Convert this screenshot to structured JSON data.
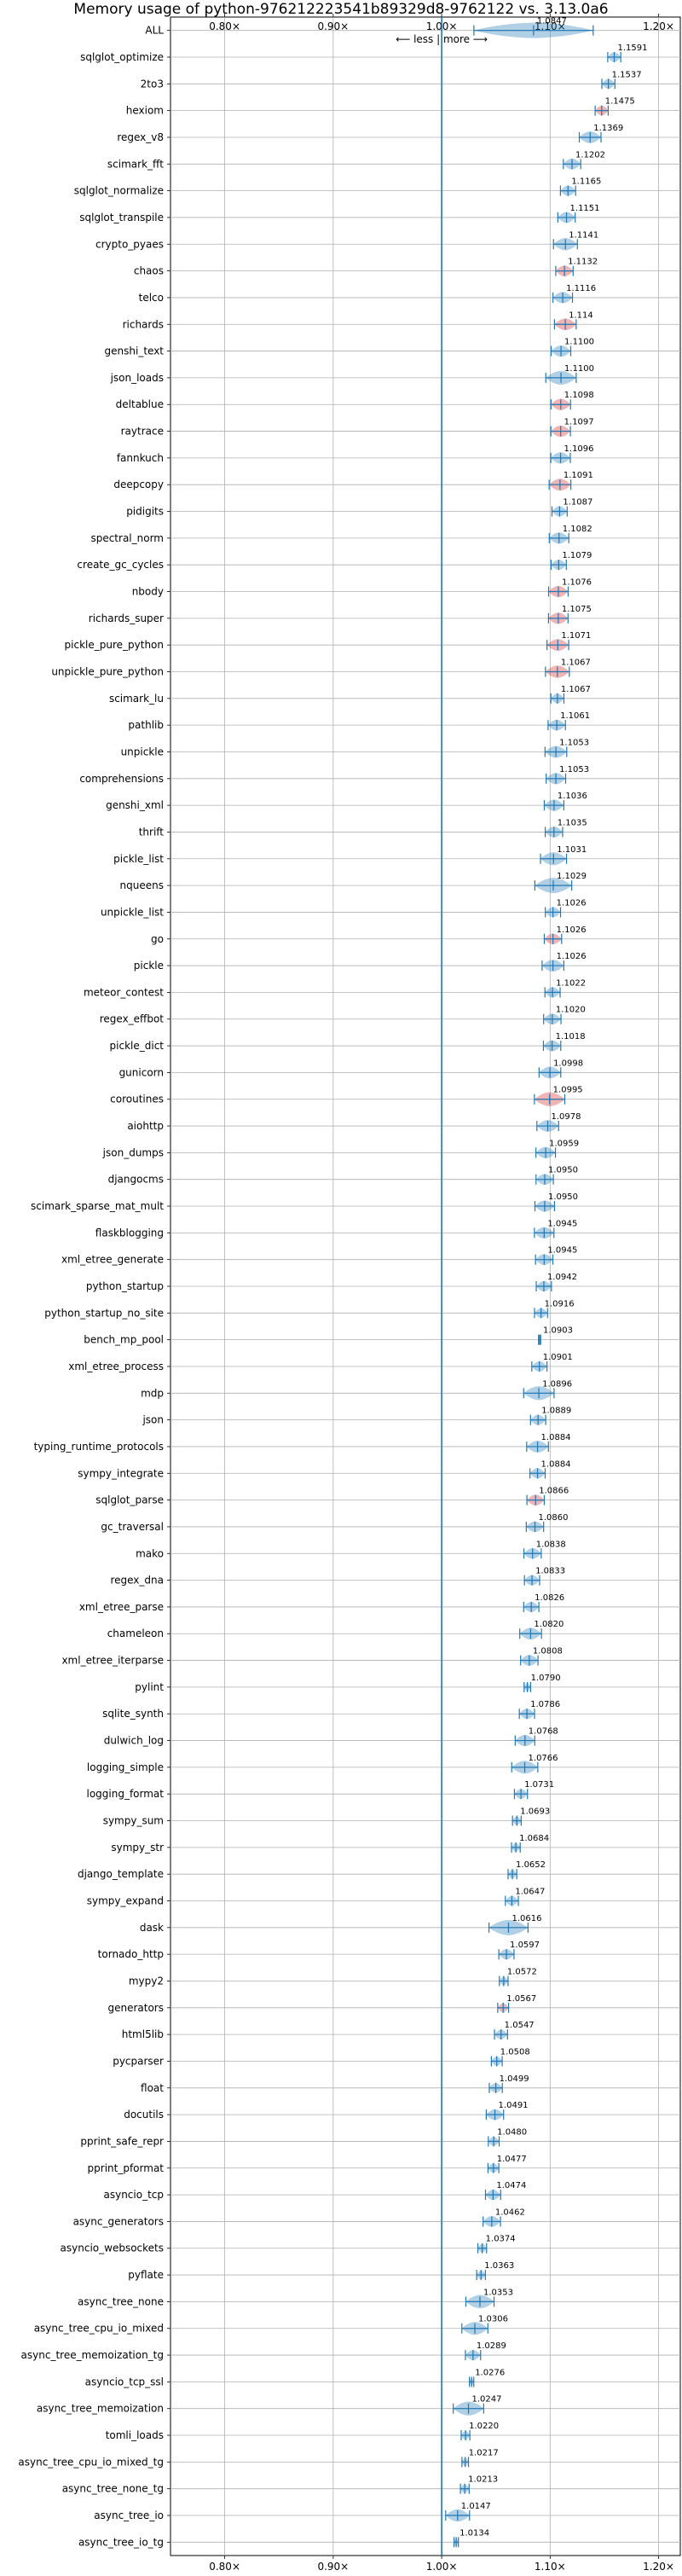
{
  "chart_data": {
    "type": "violin",
    "title": "Memory usage of python-976212223541b89329d8-9762122 vs. 3.13.0a6",
    "xlim": [
      0.75,
      1.22
    ],
    "x_ticks": [
      0.8,
      0.9,
      1.0,
      1.1,
      1.2
    ],
    "x_tick_labels": [
      "0.80×",
      "0.90×",
      "1.00×",
      "1.10×",
      "1.20×"
    ],
    "reference_line": 1.0,
    "direction_hint": "⟵ less | more ⟶",
    "grid": true,
    "colors": {
      "normal": "#1f77b4",
      "significant": "#d62728",
      "reference": "#1f77b4"
    },
    "categories": [
      "ALL",
      "sqlglot_optimize",
      "2to3",
      "hexiom",
      "regex_v8",
      "scimark_fft",
      "sqlglot_normalize",
      "sqlglot_transpile",
      "crypto_pyaes",
      "chaos",
      "telco",
      "richards",
      "genshi_text",
      "json_loads",
      "deltablue",
      "raytrace",
      "fannkuch",
      "deepcopy",
      "pidigits",
      "spectral_norm",
      "create_gc_cycles",
      "nbody",
      "richards_super",
      "pickle_pure_python",
      "unpickle_pure_python",
      "scimark_lu",
      "pathlib",
      "unpickle",
      "comprehensions",
      "genshi_xml",
      "thrift",
      "pickle_list",
      "nqueens",
      "unpickle_list",
      "go",
      "pickle",
      "meteor_contest",
      "regex_effbot",
      "pickle_dict",
      "gunicorn",
      "coroutines",
      "aiohttp",
      "json_dumps",
      "djangocms",
      "scimark_sparse_mat_mult",
      "flaskblogging",
      "xml_etree_generate",
      "python_startup",
      "python_startup_no_site",
      "bench_mp_pool",
      "xml_etree_process",
      "mdp",
      "json",
      "typing_runtime_protocols",
      "sympy_integrate",
      "sqlglot_parse",
      "gc_traversal",
      "mako",
      "regex_dna",
      "xml_etree_parse",
      "chameleon",
      "xml_etree_iterparse",
      "pylint",
      "sqlite_synth",
      "dulwich_log",
      "logging_simple",
      "logging_format",
      "sympy_sum",
      "sympy_str",
      "django_template",
      "sympy_expand",
      "dask",
      "tornado_http",
      "mypy2",
      "generators",
      "html5lib",
      "pycparser",
      "float",
      "docutils",
      "pprint_safe_repr",
      "pprint_pformat",
      "asyncio_tcp",
      "async_generators",
      "asyncio_websockets",
      "pyflate",
      "async_tree_none",
      "async_tree_cpu_io_mixed",
      "async_tree_memoization_tg",
      "asyncio_tcp_ssl",
      "async_tree_memoization",
      "tomli_loads",
      "async_tree_cpu_io_mixed_tg",
      "async_tree_none_tg",
      "async_tree_io",
      "async_tree_io_tg"
    ],
    "values": [
      1.0847,
      1.1591,
      1.1537,
      1.1475,
      1.1369,
      1.1202,
      1.1165,
      1.1151,
      1.1141,
      1.1132,
      1.1116,
      1.114,
      1.11,
      1.11,
      1.1098,
      1.1097,
      1.1096,
      1.1091,
      1.1087,
      1.1082,
      1.1079,
      1.1076,
      1.1075,
      1.1071,
      1.1067,
      1.1067,
      1.1061,
      1.1053,
      1.1053,
      1.1036,
      1.1035,
      1.1031,
      1.1029,
      1.1026,
      1.1026,
      1.1026,
      1.1022,
      1.102,
      1.1018,
      1.0998,
      1.0995,
      1.0978,
      1.0959,
      1.095,
      1.095,
      1.0945,
      1.0945,
      1.0942,
      1.0916,
      1.0903,
      1.0901,
      1.0896,
      1.0889,
      1.0884,
      1.0884,
      1.0866,
      1.086,
      1.0838,
      1.0833,
      1.0826,
      1.082,
      1.0808,
      1.079,
      1.0786,
      1.0768,
      1.0766,
      1.0731,
      1.0693,
      1.0684,
      1.0652,
      1.0647,
      1.0616,
      1.0597,
      1.0572,
      1.0567,
      1.0547,
      1.0508,
      1.0499,
      1.0491,
      1.048,
      1.0477,
      1.0474,
      1.0462,
      1.0374,
      1.0363,
      1.0353,
      1.0306,
      1.0289,
      1.0276,
      1.0247,
      1.022,
      1.0217,
      1.0213,
      1.0147,
      1.0134
    ],
    "value_labels": [
      "1.0847",
      "1.1591",
      "1.1537",
      "1.1475",
      "1.1369",
      "1.1202",
      "1.1165",
      "1.1151",
      "1.1141",
      "1.1132",
      "1.1116",
      "1.114",
      "1.1100",
      "1.1100",
      "1.1098",
      "1.1097",
      "1.1096",
      "1.1091",
      "1.1087",
      "1.1082",
      "1.1079",
      "1.1076",
      "1.1075",
      "1.1071",
      "1.1067",
      "1.1067",
      "1.1061",
      "1.1053",
      "1.1053",
      "1.1036",
      "1.1035",
      "1.1031",
      "1.1029",
      "1.1026",
      "1.1026",
      "1.1026",
      "1.1022",
      "1.1020",
      "1.1018",
      "1.0998",
      "1.0995",
      "1.0978",
      "1.0959",
      "1.0950",
      "1.0950",
      "1.0945",
      "1.0945",
      "1.0942",
      "1.0916",
      "1.0903",
      "1.0901",
      "1.0896",
      "1.0889",
      "1.0884",
      "1.0884",
      "1.0866",
      "1.0860",
      "1.0838",
      "1.0833",
      "1.0826",
      "1.0820",
      "1.0808",
      "1.0790",
      "1.0786",
      "1.0768",
      "1.0766",
      "1.0731",
      "1.0693",
      "1.0684",
      "1.0652",
      "1.0647",
      "1.0616",
      "1.0597",
      "1.0572",
      "1.0567",
      "1.0547",
      "1.0508",
      "1.0499",
      "1.0491",
      "1.0480",
      "1.0477",
      "1.0474",
      "1.0462",
      "1.0374",
      "1.0363",
      "1.0353",
      "1.0306",
      "1.0289",
      "1.0276",
      "1.0247",
      "1.0220",
      "1.0217",
      "1.0213",
      "1.0147",
      "1.0134"
    ],
    "spread": [
      0.055,
      0.006,
      0.006,
      0.006,
      0.01,
      0.008,
      0.007,
      0.008,
      0.011,
      0.008,
      0.009,
      0.01,
      0.009,
      0.014,
      0.009,
      0.009,
      0.009,
      0.01,
      0.007,
      0.009,
      0.007,
      0.009,
      0.009,
      0.01,
      0.011,
      0.006,
      0.008,
      0.01,
      0.009,
      0.009,
      0.008,
      0.012,
      0.017,
      0.007,
      0.008,
      0.01,
      0.007,
      0.008,
      0.008,
      0.01,
      0.014,
      0.01,
      0.009,
      0.008,
      0.009,
      0.009,
      0.008,
      0.007,
      0.006,
      0.001,
      0.007,
      0.014,
      0.007,
      0.01,
      0.007,
      0.008,
      0.008,
      0.008,
      0.007,
      0.007,
      0.01,
      0.008,
      0.003,
      0.007,
      0.009,
      0.012,
      0.006,
      0.004,
      0.004,
      0.004,
      0.006,
      0.018,
      0.007,
      0.004,
      0.005,
      0.006,
      0.005,
      0.006,
      0.008,
      0.005,
      0.005,
      0.007,
      0.008,
      0.004,
      0.004,
      0.013,
      0.012,
      0.007,
      0.002,
      0.014,
      0.004,
      0.003,
      0.004,
      0.011,
      0.002
    ],
    "significant": [
      false,
      false,
      false,
      true,
      false,
      false,
      false,
      false,
      false,
      true,
      false,
      true,
      false,
      false,
      true,
      true,
      false,
      true,
      false,
      false,
      false,
      true,
      true,
      true,
      true,
      false,
      false,
      false,
      false,
      false,
      false,
      false,
      false,
      false,
      true,
      false,
      false,
      false,
      false,
      false,
      true,
      false,
      false,
      false,
      false,
      false,
      false,
      false,
      false,
      false,
      false,
      false,
      false,
      false,
      false,
      true,
      false,
      false,
      false,
      false,
      false,
      false,
      false,
      false,
      false,
      false,
      false,
      false,
      false,
      false,
      false,
      false,
      false,
      false,
      true,
      false,
      false,
      false,
      false,
      false,
      false,
      false,
      false,
      false,
      false,
      false,
      false,
      false,
      false,
      false,
      false,
      false,
      false,
      false,
      false
    ]
  }
}
